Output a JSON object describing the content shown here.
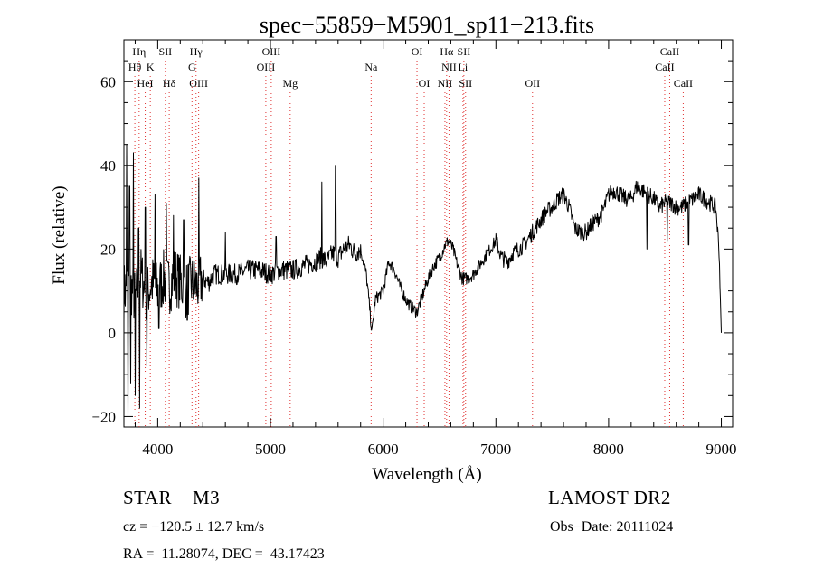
{
  "chart_data": {
    "type": "line",
    "title": "spec−55859−M5901_sp11−213.fits",
    "xlabel": "Wavelength (Å)",
    "ylabel": "Flux (relative)",
    "xlim": [
      3700,
      9100
    ],
    "ylim": [
      -22.5,
      70
    ],
    "xticks": [
      4000,
      5000,
      6000,
      7000,
      8000,
      9000
    ],
    "yticks": [
      -20,
      0,
      20,
      40,
      60
    ],
    "spectrum": {
      "wavelength": [
        3700,
        3750,
        3800,
        3850,
        3900,
        3950,
        4000,
        4050,
        4100,
        4150,
        4200,
        4250,
        4300,
        4350,
        4400,
        4450,
        4500,
        4600,
        4700,
        4800,
        4900,
        5000,
        5100,
        5200,
        5300,
        5400,
        5450,
        5500,
        5550,
        5600,
        5650,
        5700,
        5750,
        5800,
        5850,
        5880,
        5900,
        5930,
        6000,
        6050,
        6100,
        6150,
        6200,
        6250,
        6300,
        6350,
        6400,
        6450,
        6500,
        6550,
        6580,
        6620,
        6650,
        6700,
        6750,
        6800,
        6850,
        6900,
        6950,
        7000,
        7050,
        7100,
        7150,
        7200,
        7250,
        7300,
        7350,
        7400,
        7450,
        7500,
        7550,
        7600,
        7650,
        7700,
        7750,
        7800,
        7850,
        7900,
        7950,
        8000,
        8050,
        8100,
        8150,
        8200,
        8250,
        8300,
        8350,
        8400,
        8450,
        8500,
        8550,
        8600,
        8650,
        8700,
        8750,
        8800,
        8850,
        8900,
        8950,
        8980,
        9000
      ],
      "flux": [
        10,
        12,
        8,
        14,
        9,
        12,
        10,
        13,
        11,
        14,
        12,
        10,
        12,
        11,
        13,
        12,
        14,
        14,
        14,
        15,
        15,
        14,
        15,
        15,
        16,
        17,
        18,
        17,
        19,
        18,
        20,
        21,
        19,
        20,
        14,
        6,
        0,
        8,
        10,
        17,
        15,
        11,
        8,
        6,
        5,
        9,
        13,
        16,
        18,
        21,
        22,
        20,
        17,
        13,
        13,
        14,
        16,
        18,
        20,
        22,
        18,
        17,
        19,
        20,
        21,
        23,
        25,
        27,
        29,
        30,
        32,
        33,
        30,
        25,
        24,
        24,
        26,
        27,
        29,
        33,
        34,
        33,
        32,
        32,
        35,
        34,
        33,
        32,
        30,
        31,
        31,
        30,
        30,
        31,
        32,
        33,
        32,
        31,
        30,
        20,
        0
      ],
      "spikes": [
        {
          "wavelength": 3725,
          "flux": 45
        },
        {
          "wavelength": 3735,
          "flux": -20
        },
        {
          "wavelength": 3750,
          "flux": 35
        },
        {
          "wavelength": 3760,
          "flux": -12
        },
        {
          "wavelength": 3785,
          "flux": 43
        },
        {
          "wavelength": 3800,
          "flux": -15
        },
        {
          "wavelength": 3830,
          "flux": 25
        },
        {
          "wavelength": 3840,
          "flux": -18
        },
        {
          "wavelength": 3890,
          "flux": 30
        },
        {
          "wavelength": 3905,
          "flux": -8
        },
        {
          "wavelength": 3975,
          "flux": 33
        },
        {
          "wavelength": 4010,
          "flux": 1
        },
        {
          "wavelength": 4075,
          "flux": 31
        },
        {
          "wavelength": 4140,
          "flux": 28
        },
        {
          "wavelength": 4230,
          "flux": 27
        },
        {
          "wavelength": 4262,
          "flux": 3
        },
        {
          "wavelength": 4363,
          "flux": 37
        },
        {
          "wavelength": 4600,
          "flux": 24
        },
        {
          "wavelength": 5050,
          "flux": 23
        },
        {
          "wavelength": 5455,
          "flux": 36
        },
        {
          "wavelength": 5578,
          "flux": 40
        },
        {
          "wavelength": 8340,
          "flux": 20
        },
        {
          "wavelength": 8520,
          "flux": 22
        },
        {
          "wavelength": 8710,
          "flux": 21
        }
      ]
    },
    "line_markers": [
      {
        "label": "Hη",
        "wavelength": 3835,
        "row": 0
      },
      {
        "label": "SII",
        "wavelength": 4068,
        "row": 0
      },
      {
        "label": "Hγ",
        "wavelength": 4340,
        "row": 0
      },
      {
        "label": "OIII",
        "wavelength": 5007,
        "row": 0
      },
      {
        "label": "OI",
        "wavelength": 6300,
        "row": 0
      },
      {
        "label": "Hα",
        "wavelength": 6563,
        "row": 0
      },
      {
        "label": "SII",
        "wavelength": 6716,
        "row": 0
      },
      {
        "label": "CaII",
        "wavelength": 8542,
        "row": 0
      },
      {
        "label": "Hθ",
        "wavelength": 3797,
        "row": 1
      },
      {
        "label": "K",
        "wavelength": 3934,
        "row": 1
      },
      {
        "label": "G",
        "wavelength": 4304,
        "row": 1
      },
      {
        "label": "OIII",
        "wavelength": 4959,
        "row": 1
      },
      {
        "label": "Na",
        "wavelength": 5893,
        "row": 1
      },
      {
        "label": "NII",
        "wavelength": 6584,
        "row": 1
      },
      {
        "label": "Li",
        "wavelength": 6708,
        "row": 1
      },
      {
        "label": "CaII",
        "wavelength": 8498,
        "row": 1
      },
      {
        "label": "HeI",
        "wavelength": 3889,
        "row": 2
      },
      {
        "label": "Hδ",
        "wavelength": 4102,
        "row": 2
      },
      {
        "label": "OIII",
        "wavelength": 4363,
        "row": 2
      },
      {
        "label": "Mg",
        "wavelength": 5175,
        "row": 2
      },
      {
        "label": "OI",
        "wavelength": 6364,
        "row": 2
      },
      {
        "label": "NII",
        "wavelength": 6548,
        "row": 2
      },
      {
        "label": "SII",
        "wavelength": 6731,
        "row": 2
      },
      {
        "label": "OII",
        "wavelength": 7325,
        "row": 2
      },
      {
        "label": "CaII",
        "wavelength": 8662,
        "row": 2
      }
    ],
    "colors": {
      "spectrum": "#000000",
      "markers": "#e03030"
    }
  },
  "info": {
    "object_type": "STAR    M3",
    "survey": "LAMOST DR2",
    "redshift": "cz = −120.5 ± 12.7 km/s",
    "obs_date": "Obs−Date: 20111024",
    "coordinates": "RA =  11.28074, DEC =  43.17423"
  }
}
